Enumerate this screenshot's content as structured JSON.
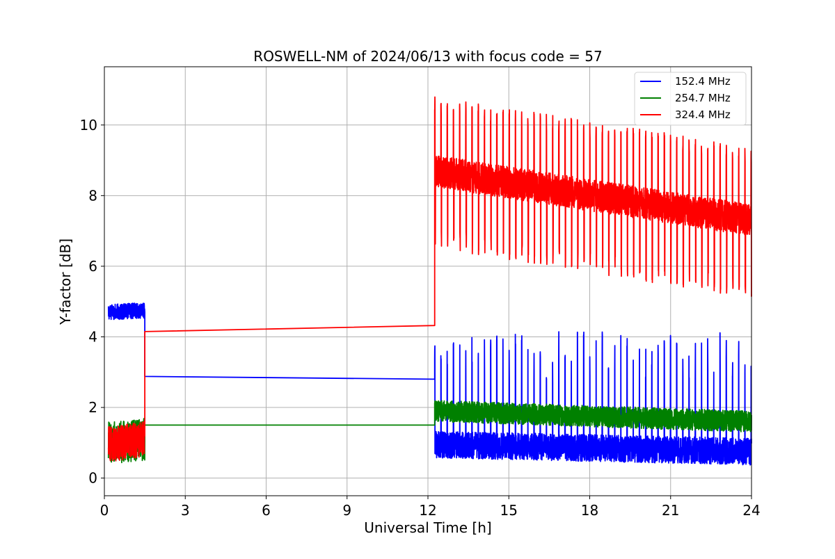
{
  "chart_data": {
    "type": "line",
    "title": "ROSWELL-NM of 2024/06/13 with focus code = 57",
    "xlabel": "Universal Time [h]",
    "ylabel": "Y-factor [dB]",
    "xlim": [
      0,
      24
    ],
    "ylim": [
      -0.5,
      11.65
    ],
    "xticks": [
      0,
      3,
      6,
      9,
      12,
      15,
      18,
      21,
      24
    ],
    "yticks": [
      0,
      2,
      4,
      6,
      8,
      10
    ],
    "grid": true,
    "legend_position": "top-right",
    "series": [
      {
        "name": "152.4 MHz",
        "color": "#0000ff",
        "segments": [
          {
            "x": [
              0.15,
              1.5
            ],
            "center": [
              4.7,
              4.75
            ],
            "noise": 0.22,
            "spikes": 0
          },
          {
            "x": [
              1.5,
              12.25
            ],
            "center": [
              2.88,
              2.8
            ],
            "noise": 0,
            "spikes": 0
          },
          {
            "x": [
              12.25,
              24.0
            ],
            "center": [
              0.95,
              0.75
            ],
            "noise": 0.38,
            "spikes": 3.2,
            "spike_period_h": 0.23
          }
        ]
      },
      {
        "name": "254.7 MHz",
        "color": "#008000",
        "segments": [
          {
            "x": [
              0.15,
              1.5
            ],
            "center": [
              1.0,
              1.1
            ],
            "noise": 0.6,
            "spikes": 0
          },
          {
            "x": [
              1.5,
              12.25
            ],
            "center": [
              1.5,
              1.5
            ],
            "noise": 0,
            "spikes": 0
          },
          {
            "x": [
              12.25,
              24.0
            ],
            "center": [
              1.9,
              1.6
            ],
            "noise": 0.3,
            "spikes": 0
          }
        ]
      },
      {
        "name": "324.4 MHz",
        "color": "#ff0000",
        "segments": [
          {
            "x": [
              0.15,
              1.5
            ],
            "center": [
              0.95,
              1.1
            ],
            "noise": 0.5,
            "spikes": 0
          },
          {
            "x": [
              1.5,
              12.25
            ],
            "center": [
              4.15,
              4.32
            ],
            "noise": 0,
            "spikes": 0
          },
          {
            "x": [
              12.25,
              24.0
            ],
            "center": [
              8.7,
              7.3
            ],
            "noise": 0.45,
            "osc_high": [
              10.8,
              9.4
            ],
            "osc_low": [
              6.5,
              5.1
            ],
            "osc_period_h": 0.23
          }
        ]
      }
    ]
  }
}
